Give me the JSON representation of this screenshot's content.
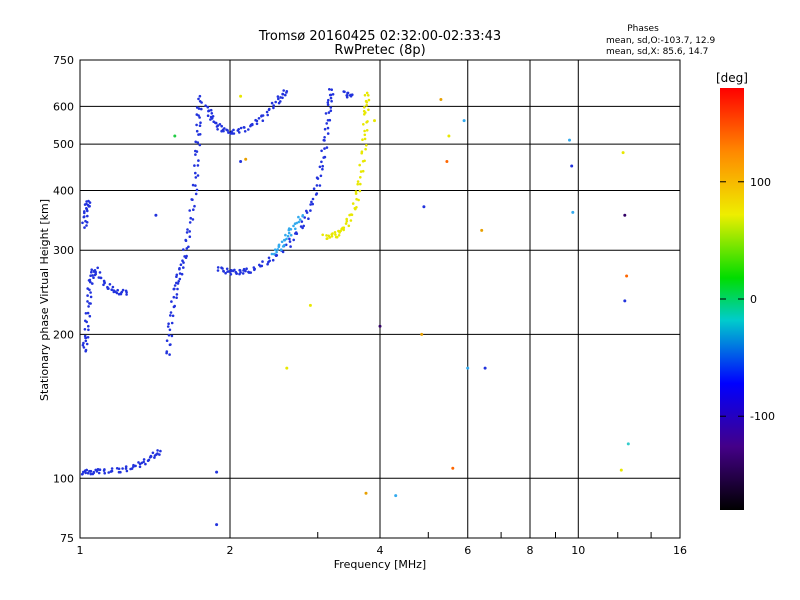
{
  "chart_data": {
    "type": "scatter",
    "title": "Tromsø 20160425 02:32:00-02:33:43",
    "subtitle": "RwPretec (8p)",
    "xlabel": "Frequency [MHz]",
    "ylabel": "Stationary phase Virtual Height [km]",
    "x_scale": "log",
    "y_scale": "log",
    "xlim": [
      1,
      16
    ],
    "ylim": [
      75,
      750
    ],
    "grid": true,
    "x_ticks": [
      1,
      2,
      4,
      6,
      8,
      10,
      16
    ],
    "y_ticks": [
      75,
      100,
      200,
      300,
      400,
      500,
      600,
      750
    ],
    "phase_legend": {
      "title": "Phases",
      "line1": "mean, sd,O:-103.7, 12.9",
      "line2": "mean, sd,X:  85.6, 14.7"
    },
    "colorbar": {
      "label": "[deg]",
      "ticks": [
        100,
        0,
        -100
      ],
      "range": [
        -180,
        180
      ]
    },
    "traces": [
      {
        "color": "#2233dd",
        "points": [
          [
            1.01,
            103
          ],
          [
            1.05,
            103
          ],
          [
            1.1,
            103.5
          ],
          [
            1.2,
            104
          ],
          [
            1.3,
            106
          ],
          [
            1.38,
            110
          ],
          [
            1.45,
            114
          ]
        ]
      },
      {
        "color": "#2233dd",
        "points": [
          [
            1.02,
            185
          ],
          [
            1.03,
            200
          ],
          [
            1.04,
            230
          ],
          [
            1.05,
            260
          ],
          [
            1.07,
            275
          ],
          [
            1.12,
            255
          ],
          [
            1.18,
            245
          ],
          [
            1.24,
            245
          ]
        ]
      },
      {
        "color": "#2233dd",
        "points": [
          [
            1.02,
            335
          ],
          [
            1.03,
            365
          ],
          [
            1.04,
            380
          ]
        ]
      },
      {
        "color": "#2233dd",
        "points": [
          [
            1.5,
            180
          ],
          [
            1.52,
            210
          ],
          [
            1.55,
            245
          ],
          [
            1.58,
            265
          ],
          [
            1.62,
            290
          ],
          [
            1.66,
            335
          ],
          [
            1.7,
            400
          ],
          [
            1.72,
            480
          ],
          [
            1.73,
            560
          ],
          [
            1.74,
            630
          ]
        ]
      },
      {
        "color": "#2233dd",
        "points": [
          [
            1.8,
            600
          ],
          [
            1.85,
            560
          ],
          [
            1.93,
            535
          ],
          [
            2.05,
            530
          ],
          [
            2.2,
            545
          ],
          [
            2.35,
            575
          ],
          [
            2.5,
            620
          ],
          [
            2.6,
            645
          ]
        ]
      },
      {
        "color": "#2233dd",
        "points": [
          [
            1.9,
            275
          ],
          [
            2.0,
            270
          ],
          [
            2.1,
            270
          ],
          [
            2.2,
            272
          ],
          [
            2.4,
            285
          ],
          [
            2.6,
            305
          ],
          [
            2.8,
            340
          ],
          [
            2.95,
            385
          ],
          [
            3.05,
            445
          ],
          [
            3.12,
            520
          ],
          [
            3.16,
            600
          ],
          [
            3.2,
            650
          ]
        ]
      },
      {
        "color": "#33aaee",
        "points": [
          [
            2.45,
            295
          ],
          [
            2.55,
            310
          ],
          [
            2.65,
            330
          ],
          [
            2.8,
            355
          ]
        ]
      },
      {
        "color": "#e8e800",
        "points": [
          [
            3.1,
            320
          ],
          [
            3.25,
            322
          ],
          [
            3.4,
            335
          ],
          [
            3.55,
            365
          ],
          [
            3.65,
            420
          ],
          [
            3.72,
            500
          ],
          [
            3.75,
            580
          ],
          [
            3.77,
            640
          ]
        ]
      },
      {
        "color": "#2233dd",
        "points": [
          [
            3.4,
            640
          ],
          [
            3.5,
            630
          ]
        ]
      }
    ],
    "points": [
      {
        "x": 1.42,
        "y": 355,
        "c": "#2233dd"
      },
      {
        "x": 1.55,
        "y": 520,
        "c": "#22cc44"
      },
      {
        "x": 1.88,
        "y": 80,
        "c": "#2233dd"
      },
      {
        "x": 1.88,
        "y": 103,
        "c": "#2233dd"
      },
      {
        "x": 2.1,
        "y": 460,
        "c": "#2233dd"
      },
      {
        "x": 2.15,
        "y": 465,
        "c": "#e8a000"
      },
      {
        "x": 2.1,
        "y": 630,
        "c": "#e8e800"
      },
      {
        "x": 2.6,
        "y": 170,
        "c": "#e8e800"
      },
      {
        "x": 2.9,
        "y": 230,
        "c": "#e8e800"
      },
      {
        "x": 3.9,
        "y": 560,
        "c": "#e8e800"
      },
      {
        "x": 4.0,
        "y": 208,
        "c": "#330066"
      },
      {
        "x": 3.75,
        "y": 93,
        "c": "#e8a000"
      },
      {
        "x": 4.3,
        "y": 92,
        "c": "#33aaee"
      },
      {
        "x": 4.9,
        "y": 370,
        "c": "#2233dd"
      },
      {
        "x": 4.85,
        "y": 200,
        "c": "#e8a000"
      },
      {
        "x": 5.3,
        "y": 620,
        "c": "#e8a000"
      },
      {
        "x": 5.5,
        "y": 520,
        "c": "#e8e800"
      },
      {
        "x": 5.45,
        "y": 460,
        "c": "#ff6600"
      },
      {
        "x": 5.6,
        "y": 105,
        "c": "#ff6600"
      },
      {
        "x": 5.9,
        "y": 560,
        "c": "#33aaee"
      },
      {
        "x": 6.0,
        "y": 170,
        "c": "#33aaee"
      },
      {
        "x": 6.4,
        "y": 330,
        "c": "#e8a000"
      },
      {
        "x": 6.5,
        "y": 170,
        "c": "#2233dd"
      },
      {
        "x": 9.6,
        "y": 510,
        "c": "#33aaee"
      },
      {
        "x": 9.7,
        "y": 450,
        "c": "#2233dd"
      },
      {
        "x": 9.75,
        "y": 360,
        "c": "#33aaee"
      },
      {
        "x": 12.3,
        "y": 480,
        "c": "#e8e800"
      },
      {
        "x": 12.4,
        "y": 355,
        "c": "#330066"
      },
      {
        "x": 12.5,
        "y": 265,
        "c": "#ff6600"
      },
      {
        "x": 12.4,
        "y": 235,
        "c": "#2233dd"
      },
      {
        "x": 12.6,
        "y": 118,
        "c": "#33cccc"
      },
      {
        "x": 12.2,
        "y": 104,
        "c": "#e8e800"
      }
    ]
  }
}
